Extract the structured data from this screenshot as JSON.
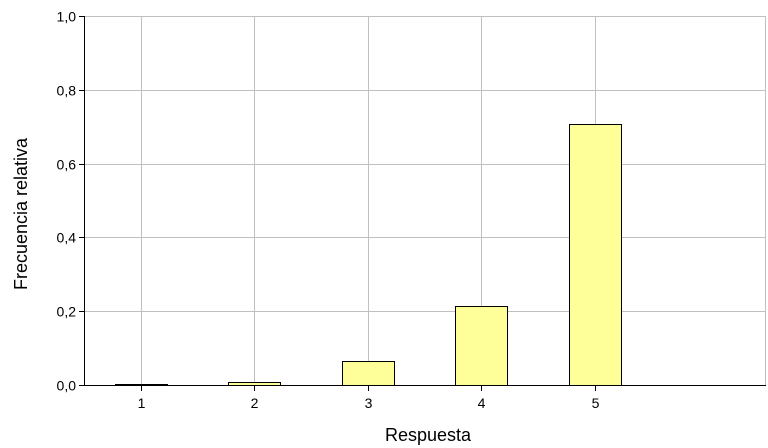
{
  "chart_data": {
    "type": "bar",
    "categories": [
      "1",
      "2",
      "3",
      "4",
      "5"
    ],
    "values": [
      0.003,
      0.007,
      0.066,
      0.213,
      0.708
    ],
    "title": "",
    "xlabel": "Respuesta",
    "ylabel": "Frecuencia relativa",
    "ylim": [
      0,
      1.0
    ],
    "yticks": [
      0.0,
      0.2,
      0.4,
      0.6,
      0.8,
      1.0
    ],
    "ytick_labels": [
      "0,0",
      "0,2",
      "0,4",
      "0,6",
      "0,8",
      "1,0"
    ],
    "grid": true,
    "legend": "none",
    "bar_color": "#ffff99",
    "bar_edge_color": "#000000",
    "grid_color": "#c0c0c0"
  }
}
